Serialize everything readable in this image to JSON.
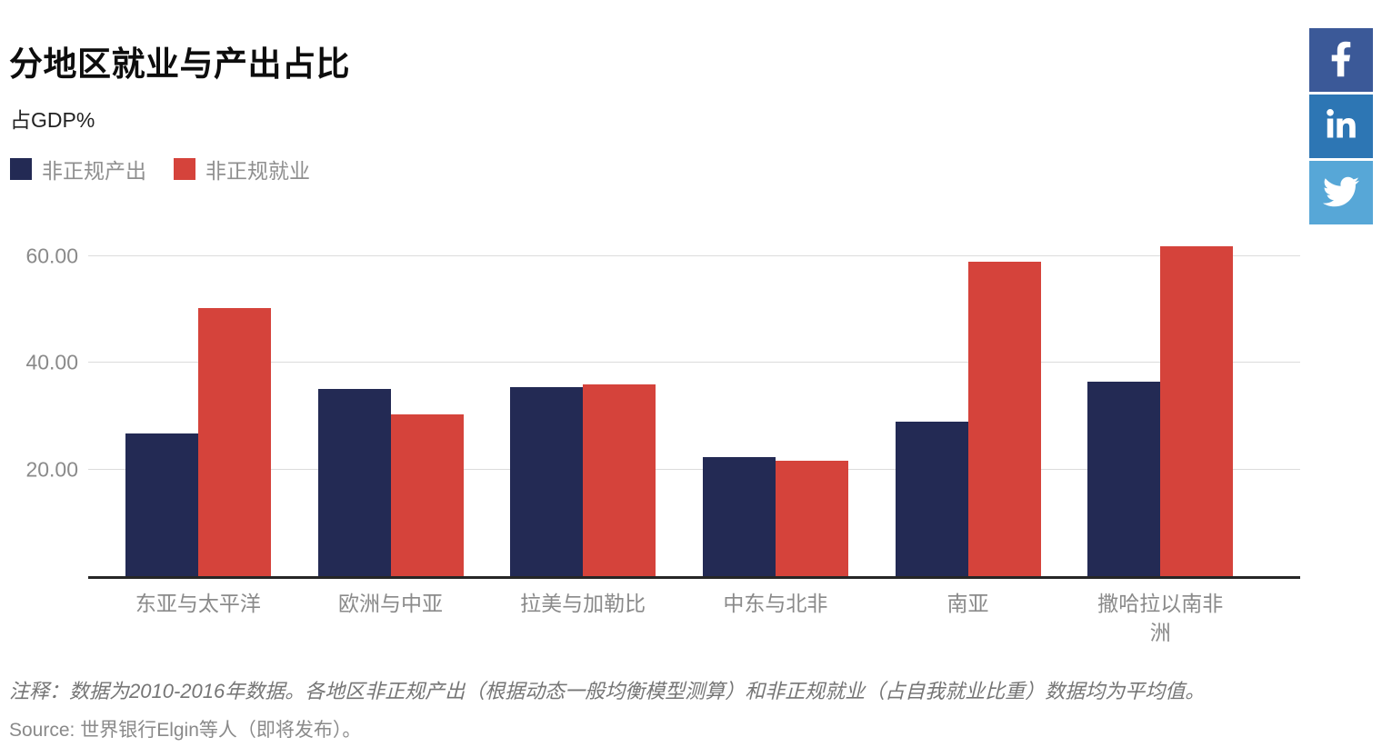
{
  "header": {
    "title": "分地区就业与产出占比",
    "subtitle": "占GDP%"
  },
  "social": [
    {
      "name": "facebook",
      "color": "#3b5998"
    },
    {
      "name": "linkedin",
      "color": "#2d76b4"
    },
    {
      "name": "twitter",
      "color": "#57a7d7"
    }
  ],
  "chart_data": {
    "type": "bar",
    "title": "分地区就业与产出占比",
    "ylabel": "占GDP%",
    "categories": [
      "东亚与太平洋",
      "欧洲与中亚",
      "拉美与加勒比",
      "中东与北非",
      "南亚",
      "撒哈拉以南非洲"
    ],
    "series": [
      {
        "key": "informal-output",
        "name": "非正规产出",
        "color": "#232a54",
        "values": [
          26.7,
          35.2,
          35.5,
          22.4,
          29.0,
          36.4
        ]
      },
      {
        "key": "informal-employment",
        "name": "非正规就业",
        "color": "#d5433b",
        "values": [
          50.3,
          30.4,
          36.0,
          21.6,
          58.9,
          61.8
        ]
      }
    ],
    "yticks": [
      {
        "value": 20,
        "label": "20.00"
      },
      {
        "value": 40,
        "label": "40.00"
      },
      {
        "value": 60,
        "label": "60.00"
      }
    ],
    "ylim": [
      0,
      64.6
    ],
    "grid": true,
    "legend_position": "top-left"
  },
  "footer": {
    "note": "注释：数据为2010-2016年数据。各地区非正规产出（根据动态一般均衡模型测算）和非正规就业（占自我就业比重）数据均为平均值。",
    "source": "Source: 世界银行Elgin等人（即将发布）。"
  }
}
